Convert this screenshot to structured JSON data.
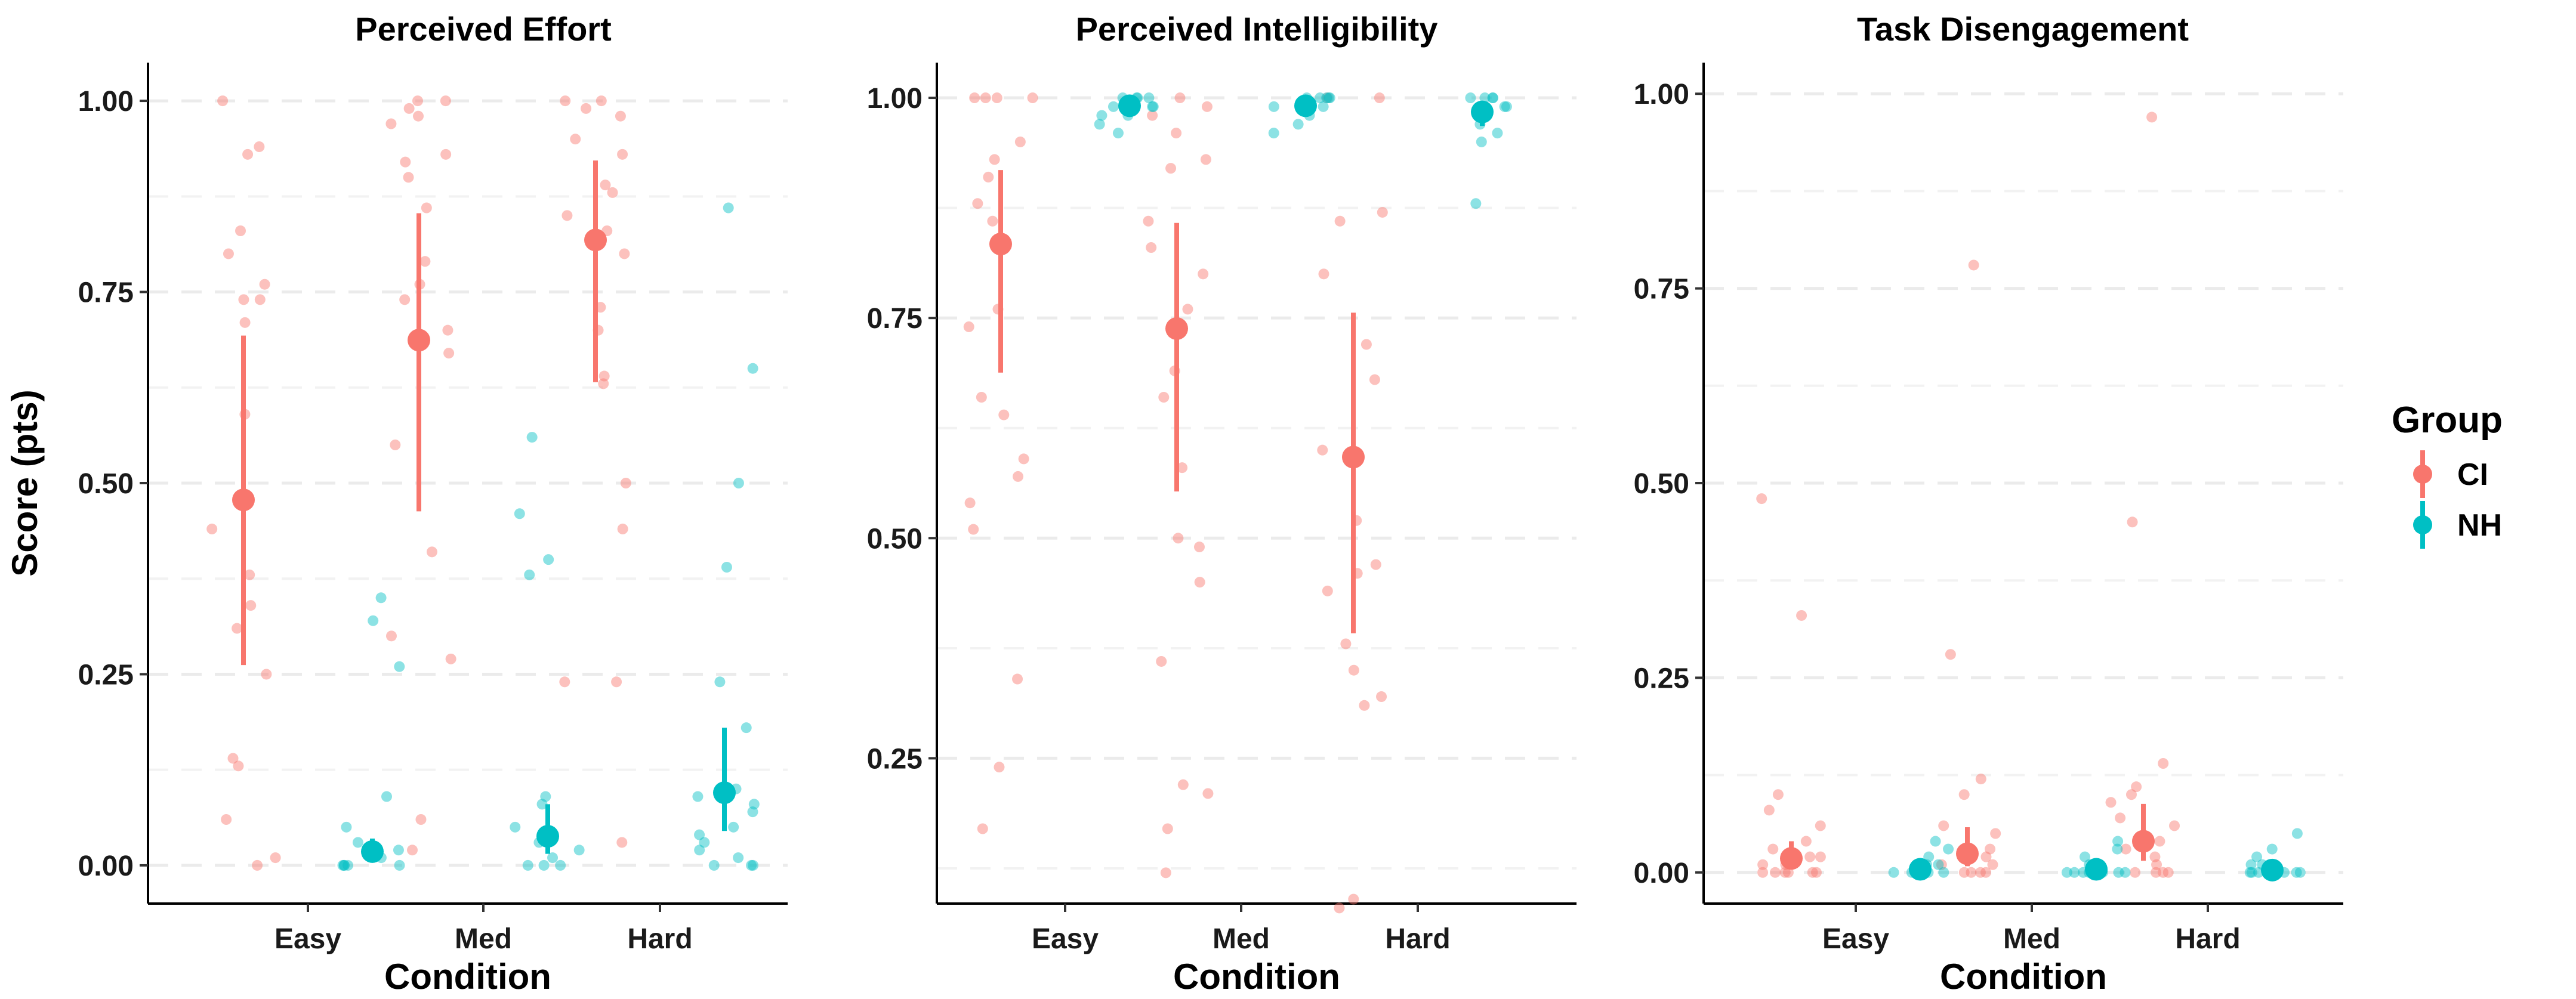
{
  "legend": {
    "title": "Group",
    "items": [
      {
        "label": "CI",
        "color": "#F8766D"
      },
      {
        "label": "NH",
        "color": "#00BFC4"
      }
    ]
  },
  "chart_data": [
    {
      "type": "scatter",
      "title": "Perceived Effort",
      "xlabel": "Condition",
      "ylabel": "Score (pts)",
      "categories": [
        "Easy",
        "Med",
        "Hard"
      ],
      "ylim": [
        -0.05,
        1.05
      ],
      "yticks": [
        0.0,
        0.25,
        0.5,
        0.75,
        1.0
      ],
      "ytick_labels": [
        "0.00",
        "0.25",
        "0.50",
        "0.75",
        "1.00"
      ],
      "grid": true,
      "series": [
        {
          "name": "CI",
          "means": [
            0.478,
            0.687,
            0.818
          ],
          "lower": [
            0.262,
            0.463,
            0.632
          ],
          "upper": [
            0.693,
            0.853,
            0.922
          ],
          "points": [
            [
              1.0,
              0.94,
              0.93,
              0.83,
              0.8,
              0.76,
              0.74,
              0.74,
              0.71,
              0.59,
              0.44,
              0.38,
              0.34,
              0.31,
              0.25,
              0.14,
              0.13,
              0.06,
              0.01,
              0.0
            ],
            [
              1.0,
              1.0,
              0.99,
              0.98,
              0.97,
              0.93,
              0.92,
              0.9,
              0.86,
              0.79,
              0.76,
              0.74,
              0.7,
              0.67,
              0.55,
              0.41,
              0.3,
              0.27,
              0.06,
              0.02
            ],
            [
              1.0,
              1.0,
              0.99,
              0.98,
              0.95,
              0.93,
              0.89,
              0.88,
              0.85,
              0.83,
              0.8,
              0.73,
              0.7,
              0.64,
              0.63,
              0.5,
              0.44,
              0.24,
              0.24,
              0.03
            ]
          ]
        },
        {
          "name": "NH",
          "means": [
            0.018,
            0.038,
            0.095
          ],
          "lower": [
            0.005,
            0.015,
            0.045
          ],
          "upper": [
            0.035,
            0.08,
            0.18
          ],
          "points": [
            [
              0.35,
              0.32,
              0.26,
              0.09,
              0.05,
              0.03,
              0.02,
              0.01,
              0.0,
              0.0,
              0.0,
              0.0,
              0.0
            ],
            [
              0.56,
              0.46,
              0.4,
              0.38,
              0.09,
              0.08,
              0.05,
              0.03,
              0.02,
              0.01,
              0.0,
              0.0,
              0.0
            ],
            [
              0.86,
              0.65,
              0.5,
              0.39,
              0.24,
              0.18,
              0.1,
              0.09,
              0.08,
              0.07,
              0.05,
              0.04,
              0.03,
              0.02,
              0.01,
              0.0,
              0.0,
              0.0
            ]
          ]
        }
      ]
    },
    {
      "type": "scatter",
      "title": "Perceived Intelligibility",
      "xlabel": "Condition",
      "ylabel": "",
      "categories": [
        "Easy",
        "Med",
        "Hard"
      ],
      "ylim": [
        0.085,
        1.04
      ],
      "yticks": [
        0.25,
        0.5,
        0.75,
        1.0
      ],
      "ytick_labels": [
        "0.25",
        "0.50",
        "0.75",
        "1.00"
      ],
      "grid": true,
      "series": [
        {
          "name": "CI",
          "means": [
            0.834,
            0.738,
            0.592
          ],
          "lower": [
            0.688,
            0.553,
            0.392
          ],
          "upper": [
            0.918,
            0.858,
            0.756
          ],
          "points": [
            [
              1.0,
              1.0,
              1.0,
              1.0,
              0.95,
              0.93,
              0.91,
              0.88,
              0.86,
              0.76,
              0.74,
              0.66,
              0.64,
              0.59,
              0.57,
              0.54,
              0.51,
              0.34,
              0.24,
              0.17
            ],
            [
              1.0,
              0.99,
              0.98,
              0.96,
              0.93,
              0.92,
              0.86,
              0.83,
              0.8,
              0.76,
              0.69,
              0.66,
              0.58,
              0.5,
              0.49,
              0.45,
              0.36,
              0.22,
              0.21,
              0.17,
              0.12
            ],
            [
              1.0,
              1.0,
              0.87,
              0.86,
              0.8,
              0.72,
              0.68,
              0.6,
              0.52,
              0.47,
              0.46,
              0.44,
              0.38,
              0.35,
              0.32,
              0.31,
              0.09,
              0.08
            ]
          ]
        },
        {
          "name": "NH",
          "means": [
            0.991,
            0.991,
            0.984
          ],
          "lower": [
            0.981,
            0.98,
            0.968
          ],
          "upper": [
            0.998,
            0.998,
            0.995
          ],
          "points": [
            [
              1.0,
              1.0,
              1.0,
              1.0,
              0.99,
              0.99,
              0.99,
              0.98,
              0.98,
              0.97,
              0.96
            ],
            [
              1.0,
              1.0,
              1.0,
              1.0,
              1.0,
              0.99,
              0.99,
              0.98,
              0.97,
              0.96
            ],
            [
              1.0,
              1.0,
              1.0,
              1.0,
              0.99,
              0.99,
              0.98,
              0.97,
              0.96,
              0.95,
              0.88
            ]
          ]
        }
      ]
    },
    {
      "type": "scatter",
      "title": "Task Disengagement",
      "xlabel": "Condition",
      "ylabel": "",
      "categories": [
        "Easy",
        "Med",
        "Hard"
      ],
      "ylim": [
        -0.04,
        1.04
      ],
      "yticks": [
        0.0,
        0.25,
        0.5,
        0.75,
        1.0
      ],
      "ytick_labels": [
        "0.00",
        "0.25",
        "0.50",
        "0.75",
        "1.00"
      ],
      "grid": true,
      "series": [
        {
          "name": "CI",
          "means": [
            0.018,
            0.024,
            0.04
          ],
          "lower": [
            0.004,
            0.008,
            0.015
          ],
          "upper": [
            0.04,
            0.058,
            0.088
          ],
          "points": [
            [
              0.48,
              0.33,
              0.1,
              0.08,
              0.06,
              0.04,
              0.03,
              0.02,
              0.02,
              0.01,
              0.01,
              0.0,
              0.0,
              0.0,
              0.0,
              0.0,
              0.0
            ],
            [
              0.78,
              0.28,
              0.12,
              0.1,
              0.06,
              0.05,
              0.03,
              0.02,
              0.01,
              0.01,
              0.0,
              0.0,
              0.0,
              0.0
            ],
            [
              0.97,
              0.45,
              0.14,
              0.11,
              0.1,
              0.09,
              0.07,
              0.06,
              0.04,
              0.03,
              0.02,
              0.01,
              0.0,
              0.0,
              0.0,
              0.0
            ]
          ]
        },
        {
          "name": "NH",
          "means": [
            0.004,
            0.004,
            0.003
          ],
          "lower": [
            0.001,
            0.001,
            0.0
          ],
          "upper": [
            0.009,
            0.009,
            0.008
          ],
          "points": [
            [
              0.04,
              0.03,
              0.02,
              0.01,
              0.01,
              0.0,
              0.0,
              0.0,
              0.0,
              0.0,
              0.0
            ],
            [
              0.04,
              0.03,
              0.02,
              0.01,
              0.0,
              0.0,
              0.0,
              0.0,
              0.0,
              0.0,
              0.0
            ],
            [
              0.05,
              0.03,
              0.02,
              0.01,
              0.01,
              0.0,
              0.0,
              0.0,
              0.0,
              0.0,
              0.0,
              0.0
            ]
          ]
        }
      ]
    }
  ]
}
